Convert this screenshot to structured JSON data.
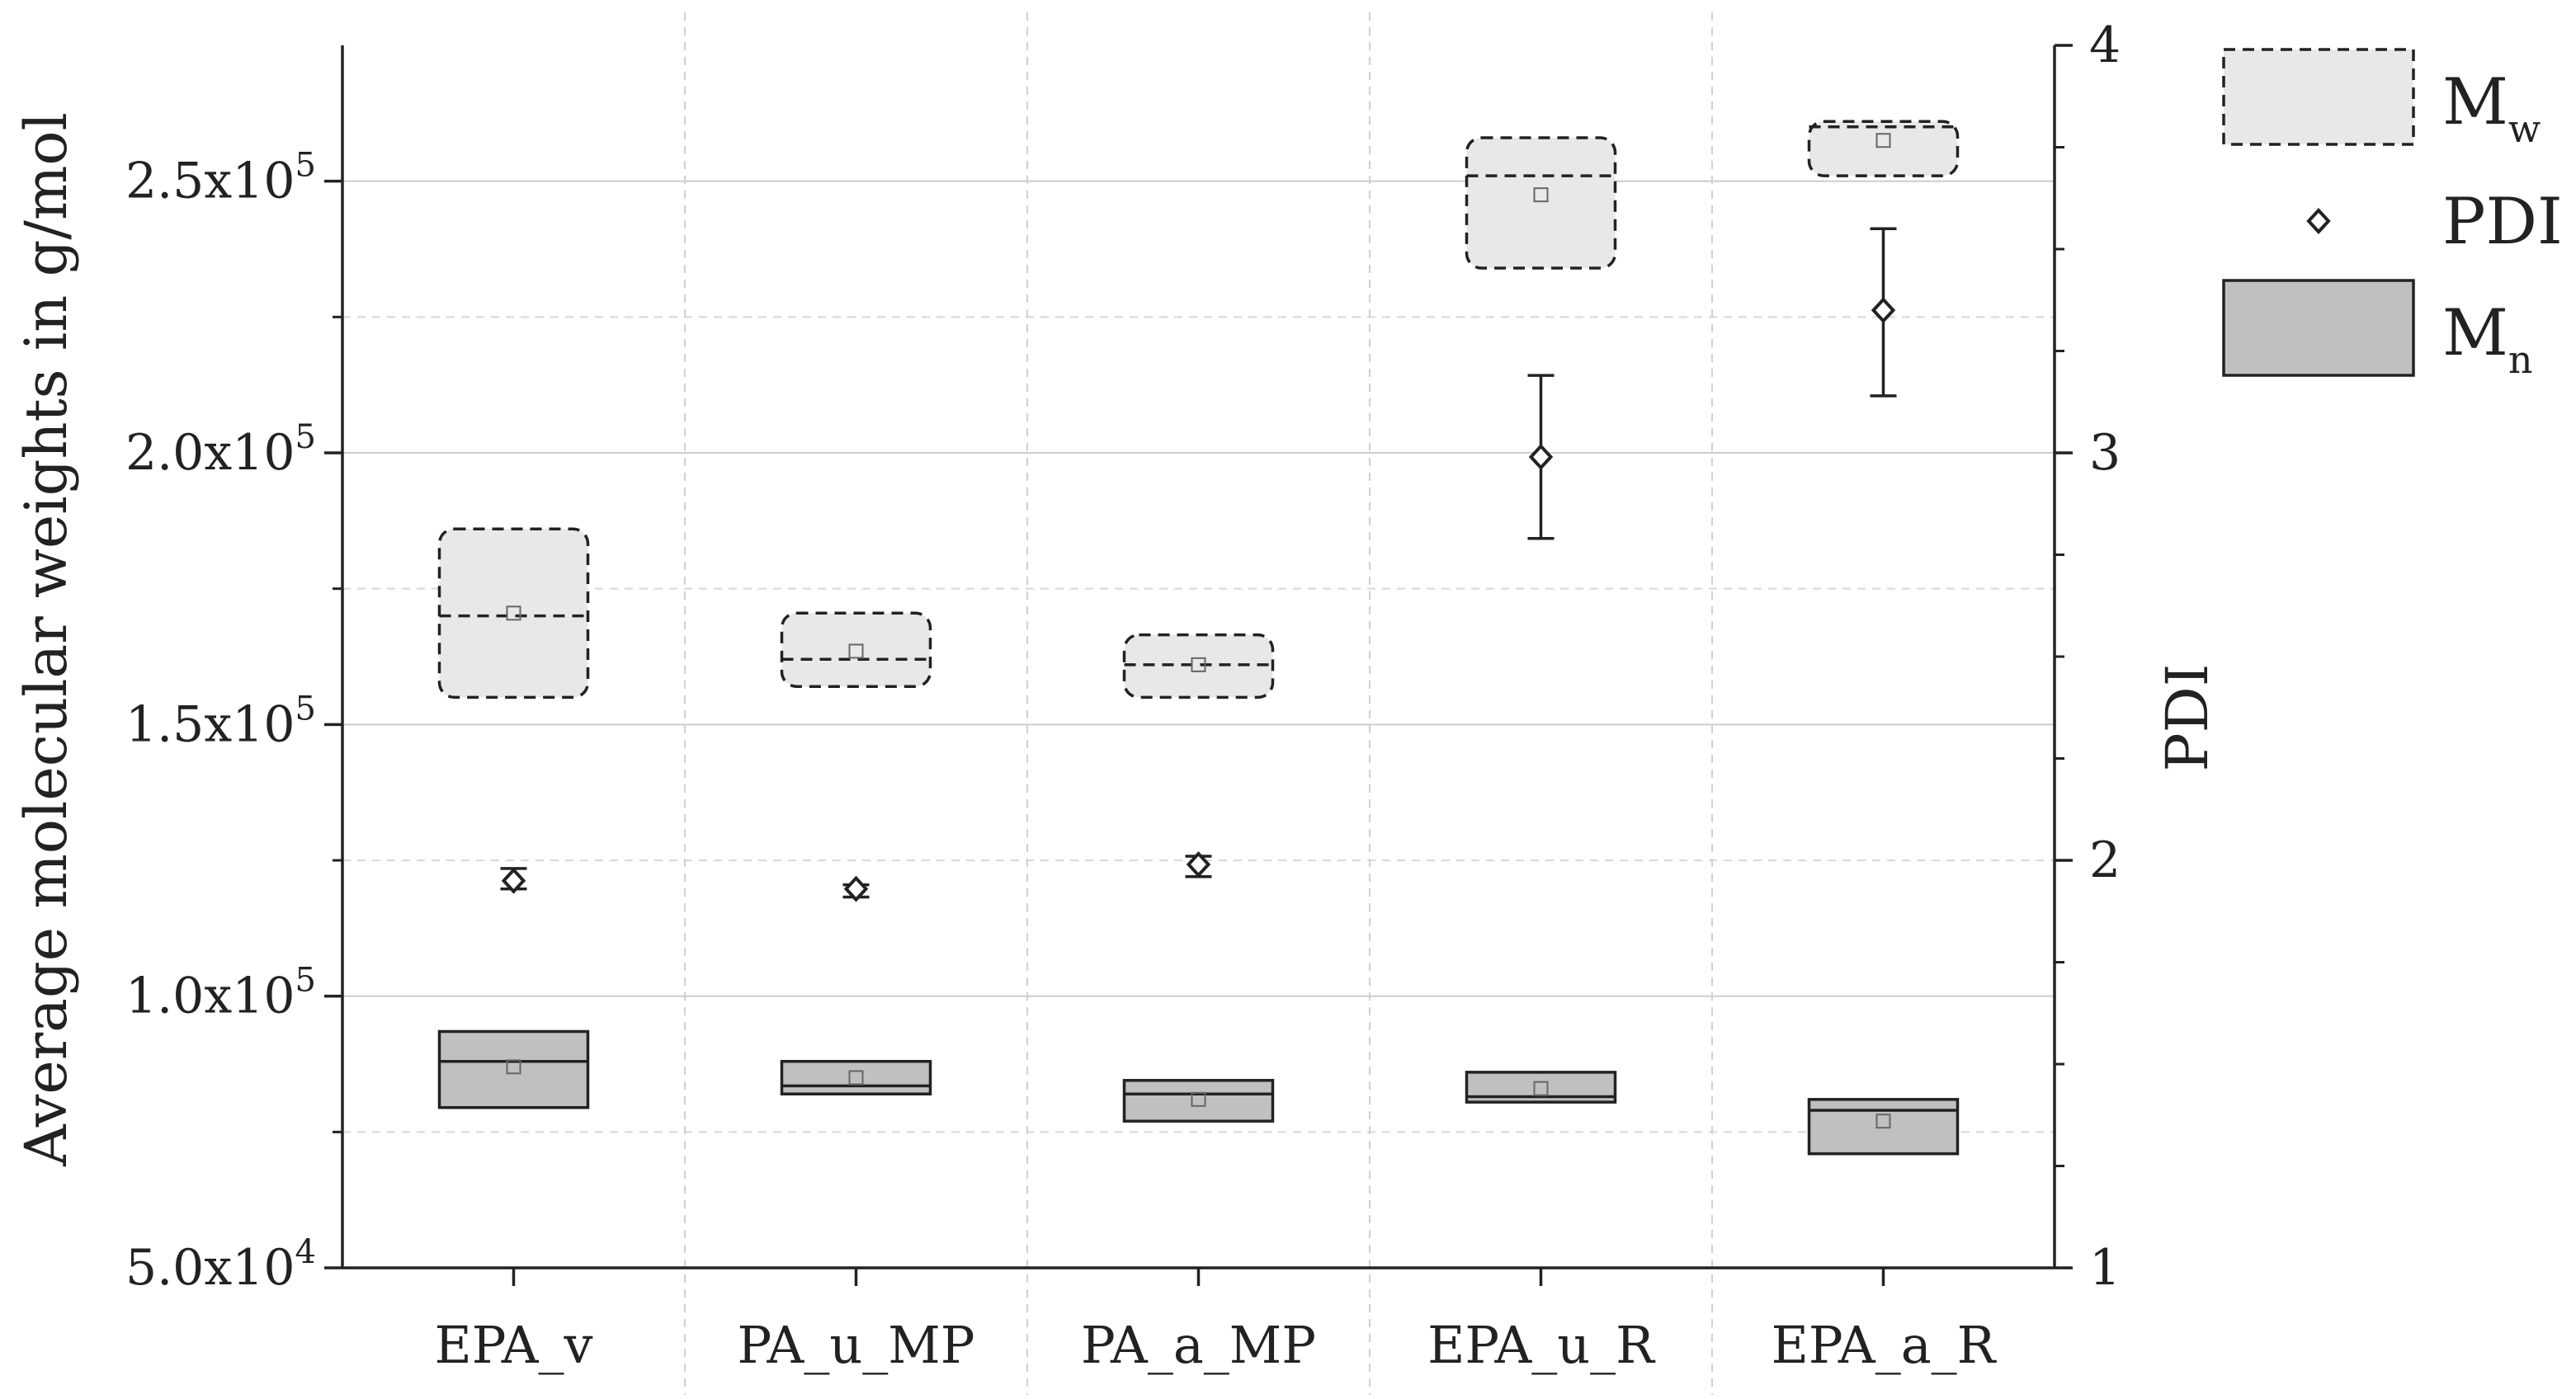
{
  "chart_data": {
    "type": "box",
    "categories": [
      "EPA_v",
      "PA_u_MP",
      "PA_a_MP",
      "EPA_u_R",
      "EPA_a_R"
    ],
    "ylabel_left": "Average molecular weights in g/mol",
    "ylabel_right": "PDI",
    "ylim_left": [
      50000,
      275000
    ],
    "ylim_right": [
      1,
      4
    ],
    "left_ticks": [
      {
        "value": 50000,
        "mant": "5.0x10",
        "exp": "4"
      },
      {
        "value": 100000,
        "mant": "1.0x10",
        "exp": "5"
      },
      {
        "value": 150000,
        "mant": "1.5x10",
        "exp": "5"
      },
      {
        "value": 200000,
        "mant": "2.0x10",
        "exp": "5"
      },
      {
        "value": 250000,
        "mant": "2.5x10",
        "exp": "5"
      }
    ],
    "right_ticks": [
      {
        "value": 1,
        "label": "1"
      },
      {
        "value": 2,
        "label": "2"
      },
      {
        "value": 3,
        "label": "3"
      },
      {
        "value": 4,
        "label": "4"
      }
    ],
    "grid": true,
    "legend_position": "top-right",
    "series": [
      {
        "name": "Mw",
        "legend_main": "M",
        "legend_sub": "w",
        "axis": "left",
        "style": "dashed-box",
        "fill": "#e8e8e8",
        "boxes": [
          {
            "low": 155000,
            "high": 186000,
            "median": 170000,
            "mean": 170500
          },
          {
            "low": 157000,
            "high": 170500,
            "median": 162000,
            "mean": 163500
          },
          {
            "low": 155000,
            "high": 166500,
            "median": 161000,
            "mean": 161000
          },
          {
            "low": 234000,
            "high": 258000,
            "median": 251000,
            "mean": 247500
          },
          {
            "low": 251000,
            "high": 261000,
            "median": 260000,
            "mean": 257500
          }
        ]
      },
      {
        "name": "PDI",
        "legend_main": "PDI",
        "axis": "right",
        "style": "diamond-errorbar",
        "points": [
          {
            "value": 1.95,
            "err_low": 1.93,
            "err_high": 1.98
          },
          {
            "value": 1.93,
            "err_low": 1.91,
            "err_high": 1.94
          },
          {
            "value": 1.99,
            "err_low": 1.96,
            "err_high": 2.01
          },
          {
            "value": 2.99,
            "err_low": 2.79,
            "err_high": 3.19
          },
          {
            "value": 3.35,
            "err_low": 3.14,
            "err_high": 3.55
          }
        ]
      },
      {
        "name": "Mn",
        "legend_main": "M",
        "legend_sub": "n",
        "axis": "left",
        "style": "solid-box",
        "fill": "#c0c0c0",
        "boxes": [
          {
            "low": 79500,
            "high": 93500,
            "median": 88000,
            "mean": 87000
          },
          {
            "low": 82000,
            "high": 88000,
            "median": 83500,
            "mean": 85000
          },
          {
            "low": 77000,
            "high": 84500,
            "median": 82000,
            "mean": 81000
          },
          {
            "low": 80500,
            "high": 86000,
            "median": 81500,
            "mean": 83000
          },
          {
            "low": 71000,
            "high": 81000,
            "median": 79000,
            "mean": 77000
          }
        ]
      }
    ]
  }
}
